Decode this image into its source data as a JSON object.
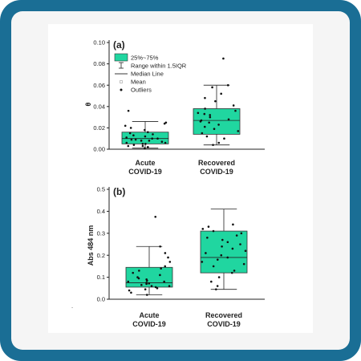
{
  "frame": {
    "border_color": "#1a6e95",
    "bg_color": "#ffffff",
    "panel_bg": "#f5f5f5"
  },
  "box_color": "#20d6a0",
  "box_stroke": "#333333",
  "legend": {
    "items": [
      {
        "kind": "box",
        "label": "25%~75%"
      },
      {
        "kind": "whisker",
        "label": "Range within 1.5IQR"
      },
      {
        "kind": "median",
        "label": "Median Line"
      },
      {
        "kind": "mean",
        "label": "Mean"
      },
      {
        "kind": "outlier",
        "label": "Outliers"
      }
    ]
  },
  "chart_data": [
    {
      "type": "box",
      "panel_label": "(a)",
      "ylabel": "θ",
      "ylim": [
        0,
        0.1
      ],
      "yticks": [
        "0.00",
        "0.02",
        "0.04",
        "0.06",
        "0.08",
        "0.10"
      ],
      "ytick_values": [
        0,
        0.02,
        0.04,
        0.06,
        0.08,
        0.1
      ],
      "categories": [
        [
          "Acute",
          "COVID-19"
        ],
        [
          "Recovered",
          "COVID-19"
        ]
      ],
      "boxes": [
        {
          "whisker_low": 0.001,
          "q1": 0.005,
          "median": 0.01,
          "q3": 0.016,
          "whisker_high": 0.026
        },
        {
          "whisker_low": 0.004,
          "q1": 0.014,
          "median": 0.027,
          "q3": 0.038,
          "whisker_high": 0.06
        }
      ],
      "points": [
        [
          0.001,
          0.002,
          0.003,
          0.004,
          0.005,
          0.005,
          0.006,
          0.007,
          0.008,
          0.008,
          0.009,
          0.01,
          0.01,
          0.011,
          0.012,
          0.013,
          0.014,
          0.015,
          0.016,
          0.018,
          0.02,
          0.022,
          0.024,
          0.025,
          0.036,
          0.003,
          0.006,
          0.009
        ],
        [
          0.004,
          0.006,
          0.01,
          0.012,
          0.015,
          0.017,
          0.019,
          0.021,
          0.023,
          0.025,
          0.027,
          0.028,
          0.03,
          0.032,
          0.034,
          0.036,
          0.038,
          0.041,
          0.045,
          0.048,
          0.052,
          0.058,
          0.06,
          0.085,
          0.026,
          0.033
        ]
      ]
    },
    {
      "type": "box",
      "panel_label": "(b)",
      "ylabel": "Abs 484 nm",
      "ylim": [
        0,
        0.5
      ],
      "yticks": [
        "0.0",
        "0.1",
        "0.2",
        "0.3",
        "0.4",
        "0.5"
      ],
      "ytick_values": [
        0,
        0.1,
        0.2,
        0.3,
        0.4,
        0.5
      ],
      "categories": [
        [
          "Acute",
          "COVID-19"
        ],
        [
          "Recovered",
          "COVID-19"
        ]
      ],
      "boxes": [
        {
          "whisker_low": 0.02,
          "q1": 0.055,
          "median": 0.075,
          "q3": 0.145,
          "whisker_high": 0.24
        },
        {
          "whisker_low": 0.045,
          "q1": 0.12,
          "median": 0.19,
          "q3": 0.31,
          "whisker_high": 0.41
        }
      ],
      "points": [
        [
          0.02,
          0.03,
          0.04,
          0.045,
          0.05,
          0.055,
          0.06,
          0.065,
          0.07,
          0.072,
          0.075,
          0.08,
          0.085,
          0.09,
          0.095,
          0.1,
          0.11,
          0.12,
          0.13,
          0.14,
          0.15,
          0.17,
          0.19,
          0.21,
          0.24,
          0.375,
          0.06,
          0.08
        ],
        [
          0.045,
          0.06,
          0.08,
          0.1,
          0.12,
          0.13,
          0.15,
          0.16,
          0.17,
          0.18,
          0.19,
          0.2,
          0.21,
          0.22,
          0.24,
          0.25,
          0.26,
          0.27,
          0.28,
          0.29,
          0.3,
          0.31,
          0.32,
          0.33,
          0.34,
          0.23
        ]
      ]
    }
  ]
}
